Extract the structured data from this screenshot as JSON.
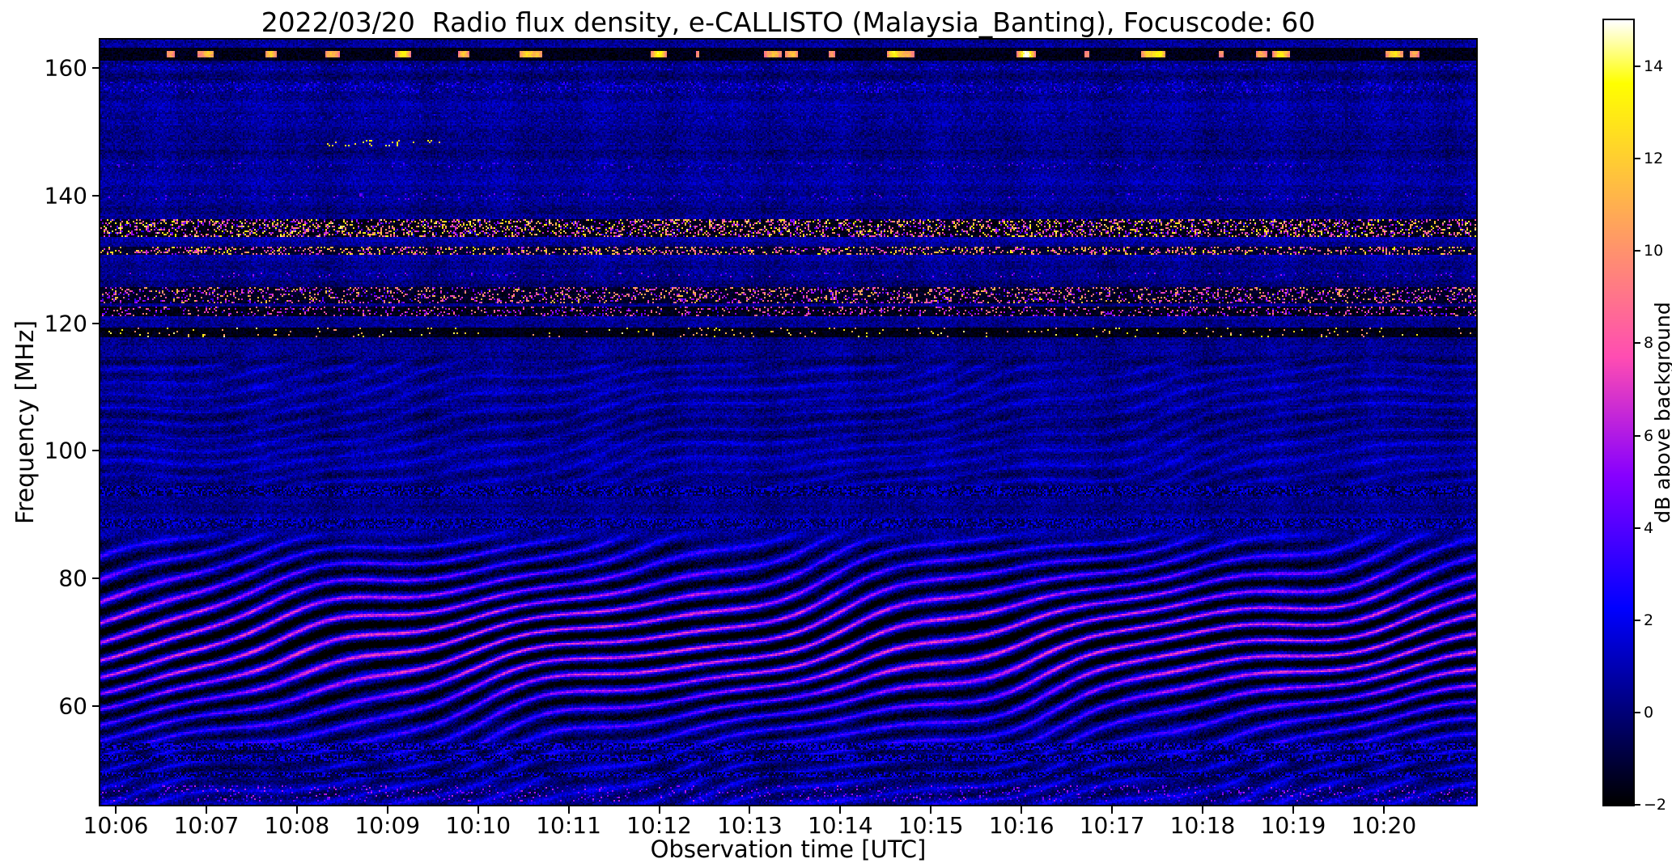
{
  "chart_data": {
    "type": "heatmap",
    "title": "2022/03/20  Radio flux density, e-CALLISTO (Malaysia_Banting), Focuscode: 60",
    "xlabel": "Observation time [UTC]",
    "ylabel": "Frequency [MHz]",
    "x_axis": {
      "start_minute": 5.83,
      "end_minute": 21.02,
      "ticks": [
        {
          "minute": 6,
          "label": "10:06"
        },
        {
          "minute": 7,
          "label": "10:07"
        },
        {
          "minute": 8,
          "label": "10:08"
        },
        {
          "minute": 9,
          "label": "10:09"
        },
        {
          "minute": 10,
          "label": "10:10"
        },
        {
          "minute": 11,
          "label": "10:11"
        },
        {
          "minute": 12,
          "label": "10:12"
        },
        {
          "minute": 13,
          "label": "10:13"
        },
        {
          "minute": 14,
          "label": "10:14"
        },
        {
          "minute": 15,
          "label": "10:15"
        },
        {
          "minute": 16,
          "label": "10:16"
        },
        {
          "minute": 17,
          "label": "10:17"
        },
        {
          "minute": 18,
          "label": "10:18"
        },
        {
          "minute": 19,
          "label": "10:19"
        },
        {
          "minute": 20,
          "label": "10:20"
        }
      ]
    },
    "y_axis": {
      "min_mhz": 44.5,
      "max_mhz": 164.5,
      "ticks": [
        160,
        140,
        120,
        100,
        80,
        60
      ]
    },
    "colorbar": {
      "label": "dB above background",
      "ticks": [
        14,
        12,
        10,
        8,
        6,
        4,
        2,
        0,
        -2
      ],
      "vmin": -2,
      "vmax": 15,
      "colormap": "gnuplot2"
    },
    "noise_floor_db": 0.4,
    "fringe_patterns": [
      {
        "f_min": 44.5,
        "f_max": 88.0,
        "spacing_mhz": 2.8,
        "drift_mhz_per_min": 3.1,
        "amp_base_db": 0.8,
        "amp_peak_db": 3.0,
        "peak_freq_mhz": 70,
        "sigma_mhz": 9
      },
      {
        "f_min": 95.0,
        "f_max": 116.0,
        "spacing_mhz": 2.3,
        "drift_mhz_per_min": 2.2,
        "amp_base_db": 0.55,
        "amp_peak_db": 0,
        "peak_freq_mhz": 105,
        "sigma_mhz": 8
      }
    ],
    "rfi_bands": [
      {
        "f0": 162.3,
        "hw": 1.0,
        "base_db": -1.6,
        "mode": "dash",
        "v_lo": 8.5,
        "v_hi": 15
      },
      {
        "f0": 160.2,
        "hw": 0.4,
        "density": 0.1,
        "v_lo": 1.5,
        "v_hi": 3.0
      },
      {
        "f0": 157.0,
        "hw": 0.8,
        "density": 0.15,
        "v_lo": 1.5,
        "v_hi": 3.5
      },
      {
        "f0": 152.5,
        "hw": 0.4,
        "density": 0.05,
        "v_lo": 1.5,
        "v_hi": 3.0
      },
      {
        "f0": 148.2,
        "hw": 0.5,
        "density": 0.1,
        "v_lo": 11,
        "v_hi": 14.5,
        "t0": 8.3,
        "t1": 9.6
      },
      {
        "f0": 144.8,
        "hw": 0.5,
        "density": 0.05,
        "v_lo": 2,
        "v_hi": 4.5
      },
      {
        "f0": 139.8,
        "hw": 0.5,
        "density": 0.06,
        "v_lo": 2,
        "v_hi": 5
      },
      {
        "f0": 135.0,
        "hw": 1.4,
        "base_db": -1.6,
        "density": 0.3,
        "v_lo": 2.5,
        "v_hi": 14.5
      },
      {
        "f0": 131.4,
        "hw": 0.6,
        "base_db": -1.2,
        "density": 0.25,
        "v_lo": 5,
        "v_hi": 13.5
      },
      {
        "f0": 127.6,
        "hw": 0.4,
        "density": 0.06,
        "v_lo": 2,
        "v_hi": 6
      },
      {
        "f0": 124.4,
        "hw": 1.2,
        "base_db": -1.4,
        "density": 0.22,
        "v_lo": 3,
        "v_hi": 12
      },
      {
        "f0": 121.8,
        "hw": 0.8,
        "base_db": -1.6,
        "density": 0.16,
        "v_lo": 3,
        "v_hi": 10
      },
      {
        "f0": 118.6,
        "hw": 0.8,
        "base_db": -1.7,
        "density": 0.035,
        "v_lo": 9,
        "v_hi": 14.5
      },
      {
        "f0": 93.8,
        "hw": 0.8,
        "base_db": -0.9,
        "density": 0.5,
        "v_lo": 0.3,
        "v_hi": 2.4
      },
      {
        "f0": 88.6,
        "hw": 0.7,
        "base_db": -0.7,
        "density": 0.5,
        "v_lo": 0.3,
        "v_hi": 2.4
      },
      {
        "f0": 53.6,
        "hw": 0.6,
        "base_db": -0.9,
        "density": 0.55,
        "v_lo": 0.4,
        "v_hi": 3.2
      },
      {
        "f0": 51.8,
        "hw": 0.5,
        "base_db": -0.9,
        "density": 0.5,
        "v_lo": 0.4,
        "v_hi": 3.0
      },
      {
        "f0": 49.2,
        "hw": 0.5,
        "base_db": -0.9,
        "density": 0.45,
        "v_lo": 0.4,
        "v_hi": 2.8
      },
      {
        "f0": 46.3,
        "hw": 1.2,
        "density": 0.1,
        "v_lo": 2,
        "v_hi": 6.5
      }
    ]
  }
}
